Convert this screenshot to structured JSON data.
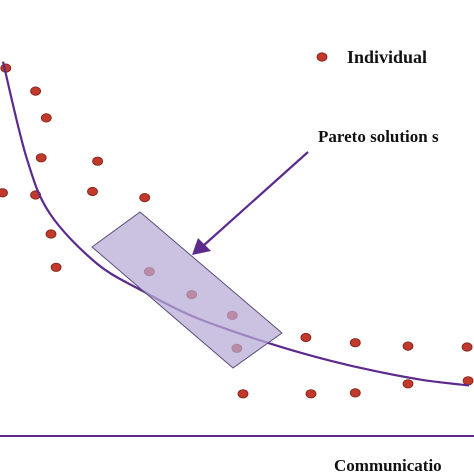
{
  "chart_data": {
    "type": "scatter",
    "xlabel": "Communicatio",
    "ylabel": "",
    "legend": {
      "label": "Individual",
      "position": "top-right"
    },
    "annotation": {
      "text": "Pareto solution s"
    },
    "colors": {
      "points": "#c0392b",
      "point_edge": "#7a1f16",
      "curve": "#5b2a8c",
      "arrow": "#5b2a8c",
      "box_fill": "#b7aad6",
      "box_stroke": "#5a4d7a",
      "axis": "#5b2a8c"
    },
    "xlim": [
      0,
      100
    ],
    "ylim": [
      0,
      100
    ],
    "series": [
      {
        "points": [
          {
            "x": 0.6,
            "y": 90.5
          },
          {
            "x": 7.0,
            "y": 85.2
          },
          {
            "x": 9.3,
            "y": 79.0
          },
          {
            "x": 8.2,
            "y": 69.8
          },
          {
            "x": 20.3,
            "y": 69.0
          },
          {
            "x": -0.1,
            "y": 61.7
          },
          {
            "x": 7.0,
            "y": 61.2
          },
          {
            "x": 19.2,
            "y": 62.0
          },
          {
            "x": 30.4,
            "y": 60.6
          },
          {
            "x": 10.3,
            "y": 52.2
          },
          {
            "x": 11.4,
            "y": 44.5
          },
          {
            "x": 31.4,
            "y": 43.5
          },
          {
            "x": 40.5,
            "y": 38.2
          },
          {
            "x": 49.2,
            "y": 33.4
          },
          {
            "x": 50.2,
            "y": 25.8
          },
          {
            "x": 65.0,
            "y": 28.3
          },
          {
            "x": 75.6,
            "y": 27.1
          },
          {
            "x": 86.9,
            "y": 26.3
          },
          {
            "x": 99.6,
            "y": 26.1
          },
          {
            "x": 51.5,
            "y": 15.3
          },
          {
            "x": 66.1,
            "y": 15.3
          },
          {
            "x": 75.6,
            "y": 15.5
          },
          {
            "x": 86.9,
            "y": 17.6
          },
          {
            "x": 99.8,
            "y": 18.3
          }
        ]
      }
    ],
    "curve": [
      {
        "x": 0,
        "y": 92
      },
      {
        "x": 5,
        "y": 70
      },
      {
        "x": 10,
        "y": 57
      },
      {
        "x": 20,
        "y": 45.5
      },
      {
        "x": 30,
        "y": 39
      },
      {
        "x": 40,
        "y": 33.5
      },
      {
        "x": 50,
        "y": 29.5
      },
      {
        "x": 60,
        "y": 26
      },
      {
        "x": 70,
        "y": 23
      },
      {
        "x": 80,
        "y": 20.5
      },
      {
        "x": 90,
        "y": 18.5
      },
      {
        "x": 100,
        "y": 17.2
      }
    ]
  }
}
